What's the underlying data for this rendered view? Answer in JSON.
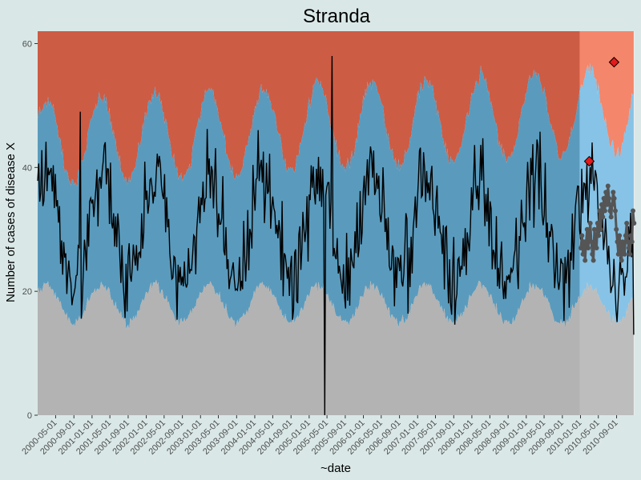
{
  "chart_data": {
    "type": "line",
    "title": "Stranda",
    "xlabel": "~date",
    "ylabel": "Number of cases of disease X",
    "ylim": [
      0,
      62
    ],
    "y_ticks": [
      0,
      20,
      40,
      60
    ],
    "x_ticks": [
      "2000-05-01",
      "2000-09-01",
      "2001-01-01",
      "2001-05-01",
      "2001-09-01",
      "2002-01-01",
      "2002-05-01",
      "2002-09-01",
      "2003-01-01",
      "2003-05-01",
      "2003-09-01",
      "2004-01-01",
      "2004-05-01",
      "2004-09-01",
      "2005-01-01",
      "2005-05-01",
      "2005-09-01",
      "2006-01-01",
      "2006-05-01",
      "2006-09-01",
      "2007-01-01",
      "2007-05-01",
      "2007-09-01",
      "2008-01-01",
      "2008-05-01",
      "2008-09-01",
      "2009-01-01",
      "2009-05-01",
      "2009-09-01",
      "2010-01-01",
      "2010-05-01",
      "2010-09-01"
    ],
    "x_range": [
      "2000-01-01",
      "2010-12-31"
    ],
    "baseline_end": "2009-12-31",
    "grid": false,
    "colors": {
      "panel": "#ebebeb",
      "baseline_low": "#b3b3b3",
      "baseline_normal": "#5a9bbd",
      "baseline_high": "#cd5c45",
      "prediction_low": "#bdbdbd",
      "prediction_normal": "#87c3e6",
      "prediction_high": "#f4866b",
      "observed_line": "#000000",
      "prediction_line": "#555555",
      "alert_marker": "#e41a1c"
    },
    "band_model": {
      "low_threshold": {
        "mean": 18,
        "amplitude": 3
      },
      "high_threshold": {
        "mean": 44,
        "amplitude": 7,
        "trend_per_year": 0.5
      },
      "peak_month": 2
    },
    "observed_series": {
      "name": "",
      "start": "2000-01-01",
      "step_days": 7,
      "mean": 30,
      "amplitude": 9,
      "noise": 6,
      "notable_points": [
        {
          "date": "2005-04-15",
          "value": 0
        },
        {
          "date": "2005-06-01",
          "value": 58
        },
        {
          "date": "2000-10-15",
          "value": 49
        },
        {
          "date": "2010-12-25",
          "value": 13
        }
      ]
    },
    "prediction_series": {
      "name": "",
      "start": "2010-01-04",
      "step_days": 7,
      "values": [
        27,
        29,
        26,
        28,
        25,
        28,
        30,
        27,
        29,
        31,
        28,
        26,
        25,
        30,
        28,
        27,
        31,
        29,
        33,
        30,
        34,
        32,
        35,
        33,
        36,
        34,
        37,
        35,
        33,
        32,
        34,
        36,
        35,
        33,
        30,
        28,
        26,
        29,
        27,
        25,
        28,
        27,
        26,
        29,
        31,
        28,
        27,
        26,
        29,
        28,
        33,
        31
      ]
    },
    "alerts": [
      {
        "date": "2010-03-01",
        "value": 41
      },
      {
        "date": "2010-08-15",
        "value": 57
      }
    ]
  }
}
